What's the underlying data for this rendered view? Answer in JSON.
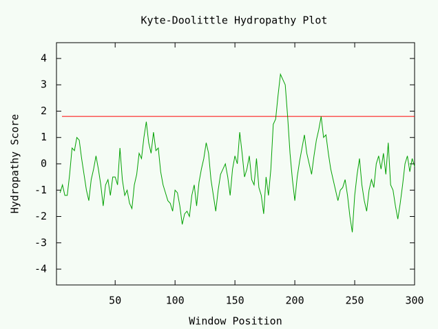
{
  "chart_data": {
    "type": "line",
    "title": "Kyte-Doolittle Hydropathy Plot",
    "xlabel": "Window Position",
    "ylabel": "Hydropathy Score",
    "xlim": [
      1,
      300
    ],
    "ylim": [
      -4.6,
      4.6
    ],
    "xticks": [
      50,
      100,
      150,
      200,
      250,
      300
    ],
    "yticks": [
      -4,
      -3,
      -2,
      -1,
      0,
      1,
      2,
      3,
      4
    ],
    "reference_line": 1.8,
    "reference_color": "#ff0000",
    "background": "#f5fcf5",
    "x": [
      4,
      6,
      8,
      10,
      12,
      14,
      16,
      18,
      20,
      22,
      24,
      26,
      28,
      30,
      32,
      34,
      36,
      38,
      40,
      42,
      44,
      46,
      48,
      50,
      52,
      54,
      56,
      58,
      60,
      62,
      64,
      66,
      68,
      70,
      72,
      74,
      76,
      78,
      80,
      82,
      84,
      86,
      88,
      90,
      92,
      94,
      96,
      98,
      100,
      102,
      104,
      106,
      108,
      110,
      112,
      114,
      116,
      118,
      120,
      122,
      124,
      126,
      128,
      130,
      132,
      134,
      136,
      138,
      140,
      142,
      144,
      146,
      148,
      150,
      152,
      154,
      156,
      158,
      160,
      162,
      164,
      166,
      168,
      170,
      172,
      174,
      176,
      178,
      180,
      182,
      184,
      186,
      188,
      190,
      192,
      194,
      196,
      198,
      200,
      202,
      204,
      206,
      208,
      210,
      212,
      214,
      216,
      218,
      220,
      222,
      224,
      226,
      228,
      230,
      232,
      234,
      236,
      238,
      240,
      242,
      244,
      246,
      248,
      250,
      252,
      254,
      256,
      258,
      260,
      262,
      264,
      266,
      268,
      270,
      272,
      274,
      276,
      278,
      280,
      282,
      284,
      286,
      288,
      290,
      292,
      294,
      296,
      298,
      300
    ],
    "series": [
      {
        "color": "#00a000",
        "values": [
          -1.1,
          -0.8,
          -1.2,
          -1.2,
          -0.4,
          0.6,
          0.5,
          1.0,
          0.9,
          0.2,
          -0.4,
          -1.0,
          -1.4,
          -0.6,
          -0.2,
          0.3,
          -0.2,
          -0.8,
          -1.6,
          -0.8,
          -0.6,
          -1.2,
          -0.5,
          -0.5,
          -0.8,
          0.6,
          -0.6,
          -1.2,
          -1.0,
          -1.5,
          -1.7,
          -0.8,
          -0.4,
          0.4,
          0.2,
          1.0,
          1.6,
          0.8,
          0.4,
          1.2,
          0.5,
          0.6,
          -0.3,
          -0.8,
          -1.1,
          -1.4,
          -1.5,
          -1.8,
          -1.0,
          -1.1,
          -1.6,
          -2.3,
          -1.9,
          -1.8,
          -2.0,
          -1.2,
          -0.8,
          -1.6,
          -0.7,
          -0.2,
          0.2,
          0.8,
          0.4,
          -0.6,
          -1.2,
          -1.8,
          -1.0,
          -0.4,
          -0.2,
          0.0,
          -0.5,
          -1.2,
          -0.2,
          0.3,
          0.0,
          1.2,
          0.4,
          -0.5,
          -0.2,
          0.3,
          -0.6,
          -0.8,
          0.2,
          -0.9,
          -1.2,
          -1.9,
          -0.5,
          -1.2,
          -0.2,
          1.5,
          1.7,
          2.6,
          3.4,
          3.2,
          3.0,
          1.8,
          0.4,
          -0.6,
          -1.4,
          -0.5,
          0.1,
          0.6,
          1.1,
          0.4,
          0.0,
          -0.4,
          0.3,
          0.9,
          1.3,
          1.8,
          1.0,
          1.1,
          0.4,
          -0.2,
          -0.6,
          -1.0,
          -1.4,
          -1.0,
          -0.9,
          -0.6,
          -1.2,
          -2.0,
          -2.6,
          -1.2,
          -0.4,
          0.2,
          -0.8,
          -1.4,
          -1.8,
          -1.0,
          -0.6,
          -0.9,
          0.0,
          0.3,
          -0.2,
          0.4,
          -0.4,
          0.8,
          -0.8,
          -1.0,
          -1.6,
          -2.1,
          -1.5,
          -0.8,
          0.0,
          0.3,
          -0.3,
          0.2,
          -0.1
        ]
      }
    ]
  }
}
